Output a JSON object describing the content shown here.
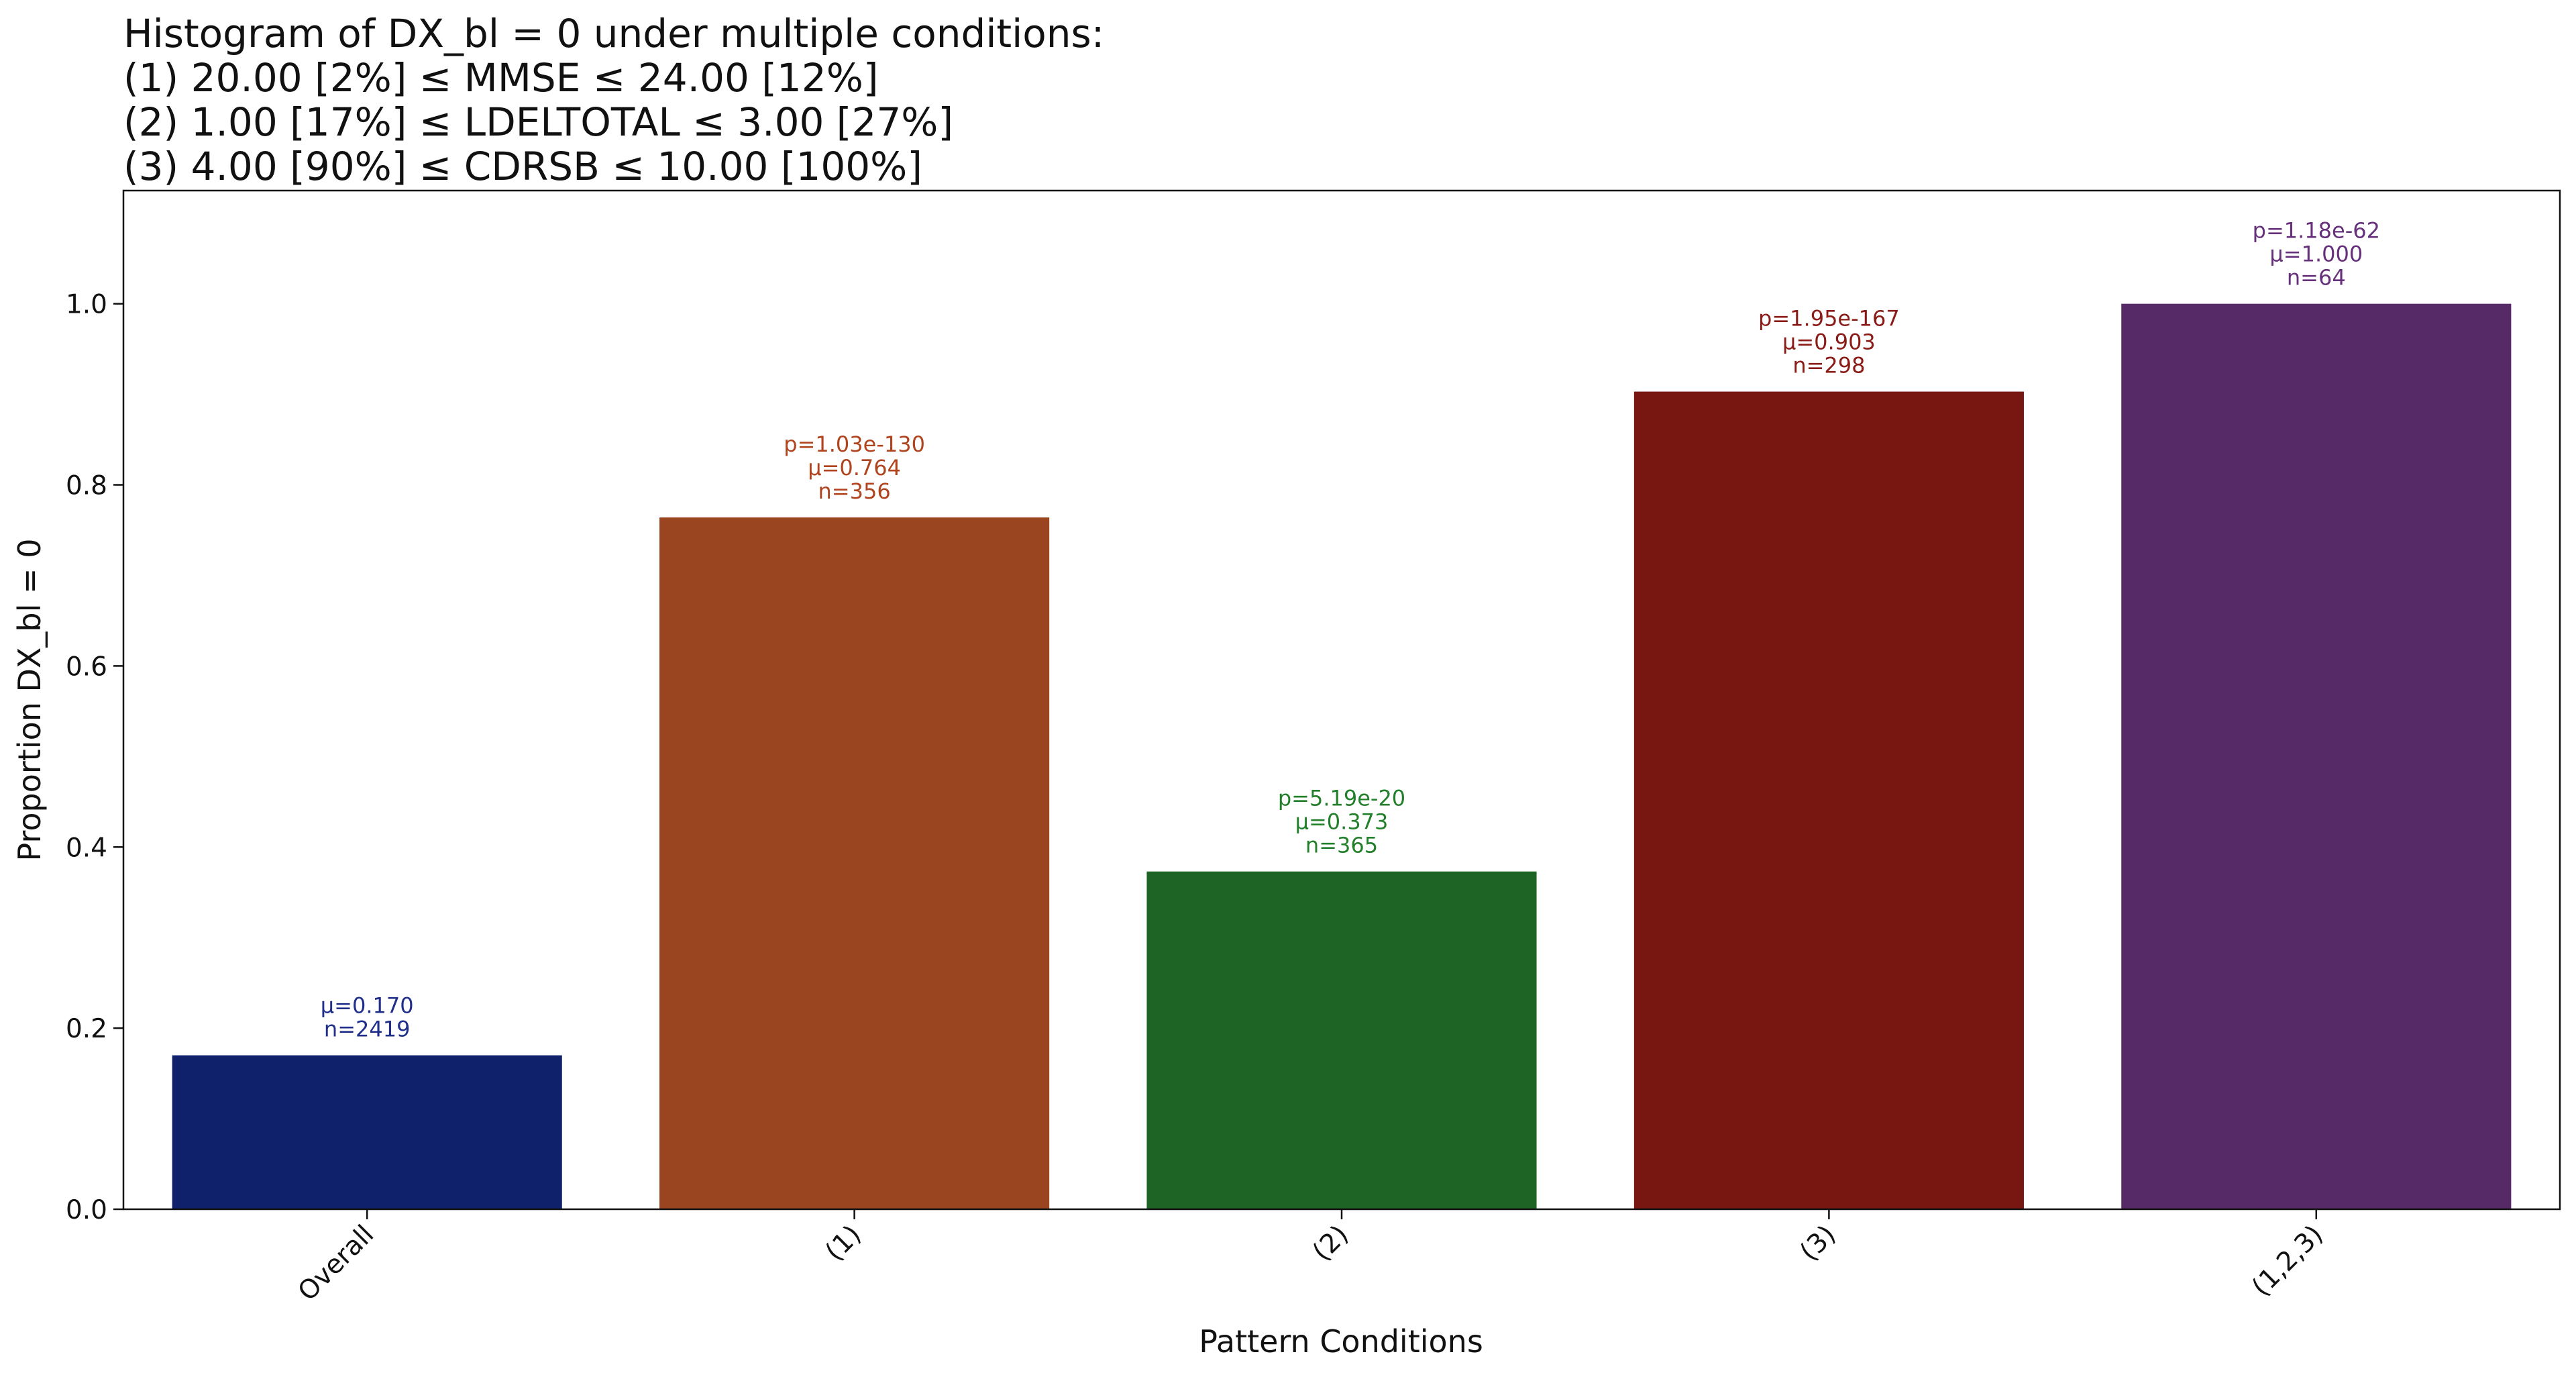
{
  "chart_data": {
    "type": "bar",
    "title": [
      "Histogram of DX_bl = 0 under multiple conditions:",
      "(1) 20.00 [2%] ≤ MMSE ≤ 24.00 [12%]",
      "(2) 1.00 [17%] ≤ LDELTOTAL ≤ 3.00 [27%]",
      "(3) 4.00 [90%] ≤ CDRSB ≤ 10.00 [100%]"
    ],
    "x_label": "Pattern Conditions",
    "y_label": "Proportion DX_bl = 0",
    "categories": [
      "Overall",
      "(1)",
      "(2)",
      "(3)",
      "(1,2,3)"
    ],
    "values": [
      0.17,
      0.764,
      0.373,
      0.903,
      1.0
    ],
    "value_labels": [
      "μ=0.170",
      "μ=0.764",
      "μ=0.373",
      "μ=0.903",
      "μ=1.000"
    ],
    "p_labels": [
      null,
      "p=1.03e-130",
      "p=5.19e-20",
      "p=1.95e-167",
      "p=1.18e-62"
    ],
    "n_labels": [
      "n=2419",
      "n=356",
      "n=365",
      "n=298",
      "n=64"
    ],
    "colors": [
      "#10216b",
      "#9a4520",
      "#1e6424",
      "#781612",
      "#552a66"
    ],
    "label_colors": [
      "#1f2f8a",
      "#b0441e",
      "#22802a",
      "#8a1b16",
      "#66307a"
    ],
    "ylim": [
      0,
      1.125
    ],
    "yticks": [
      {
        "value": 0,
        "label": "0.0"
      },
      0.2,
      0.4,
      0.6,
      0.8,
      {
        "value": 1,
        "label": "1.0"
      }
    ]
  }
}
